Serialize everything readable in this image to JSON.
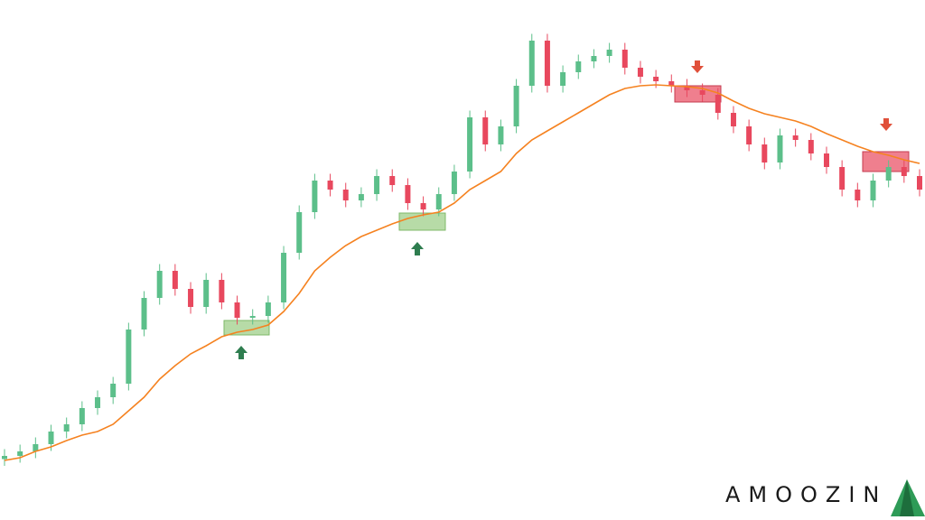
{
  "brand": "AMOOZIN",
  "chart_data": {
    "type": "candlestick",
    "categories": [
      null,
      null,
      null,
      null,
      null,
      null,
      null,
      null,
      null,
      null,
      null,
      null,
      null,
      null,
      null,
      null,
      null,
      null,
      null,
      null,
      null,
      null,
      null,
      null,
      null,
      null,
      null,
      null,
      null,
      null,
      null,
      null,
      null,
      null,
      null,
      null,
      null,
      null,
      null,
      null,
      null,
      null,
      null,
      null,
      null,
      null,
      null,
      null,
      null,
      null,
      null,
      null,
      null,
      null,
      null,
      null,
      null,
      null,
      null,
      null
    ],
    "open": [
      13.5,
      14.2,
      15.2,
      16.8,
      19.6,
      21.2,
      24.8,
      27.2,
      30.2,
      42.2,
      49.2,
      55.2,
      51.2,
      47.2,
      53.2,
      48.2,
      44.8,
      45.2,
      48.2,
      59.2,
      68.2,
      75.2,
      73.2,
      70.8,
      72.2,
      76.2,
      74.2,
      70.2,
      68.8,
      72.2,
      77.2,
      89.2,
      83.2,
      87.2,
      96.2,
      106.2,
      96.2,
      99.2,
      101.6,
      102.8,
      104.2,
      100.2,
      98.2,
      97.2,
      96.2,
      95.2,
      94.2,
      90.2,
      87.2,
      83.2,
      79.2,
      85.2,
      84.2,
      81.2,
      78.2,
      73.2,
      70.8,
      75.2,
      78.2,
      76.2
    ],
    "high": [
      15.7,
      16.7,
      18.3,
      21.1,
      22.7,
      26.3,
      28.7,
      31.7,
      43.7,
      50.7,
      56.7,
      56.7,
      52.7,
      54.7,
      54.7,
      49.7,
      46.7,
      49.7,
      60.7,
      69.7,
      76.7,
      76.7,
      74.7,
      73.7,
      77.7,
      77.7,
      75.7,
      71.7,
      73.7,
      78.7,
      90.7,
      90.7,
      88.7,
      97.7,
      107.7,
      107.7,
      100.7,
      103.1,
      104.3,
      105.7,
      105.7,
      101.7,
      99.7,
      98.7,
      97.7,
      96.7,
      95.7,
      91.7,
      88.7,
      84.7,
      86.7,
      86.7,
      85.7,
      82.7,
      79.7,
      74.7,
      76.7,
      79.7,
      79.7,
      77.7
    ],
    "low": [
      12,
      12.7,
      13.7,
      15.3,
      18.1,
      19.7,
      23.3,
      25.7,
      28.7,
      40.7,
      47.7,
      49.7,
      45.7,
      45.7,
      46.7,
      43.3,
      43.3,
      43.7,
      46.7,
      57.7,
      66.7,
      71.7,
      69.3,
      69.3,
      70.7,
      72.7,
      68.7,
      67.3,
      67.3,
      70.7,
      75.7,
      81.7,
      81.7,
      85.7,
      94.7,
      94.7,
      94.7,
      97.7,
      100.1,
      101.3,
      98.7,
      96.7,
      95.7,
      94.7,
      93.7,
      92.7,
      88.7,
      85.7,
      81.7,
      77.7,
      77.7,
      82.7,
      79.7,
      76.7,
      71.7,
      69.3,
      69.3,
      73.7,
      74.7,
      71.7
    ],
    "close": [
      14.2,
      15.2,
      16.8,
      19.6,
      21.2,
      24.8,
      27.2,
      30.2,
      42.2,
      49.2,
      55.2,
      51.2,
      47.2,
      53.2,
      48.2,
      44.8,
      45.2,
      48.2,
      59.2,
      68.2,
      75.2,
      73.2,
      70.8,
      72.2,
      76.2,
      74.2,
      70.2,
      68.8,
      72.2,
      77.2,
      89.2,
      83.2,
      87.2,
      96.2,
      106.2,
      96.2,
      99.2,
      101.6,
      102.8,
      104.2,
      100.2,
      98.2,
      97.2,
      96.2,
      95.2,
      94.2,
      90.2,
      87.2,
      83.2,
      79.2,
      85.2,
      84.2,
      81.2,
      78.2,
      73.2,
      70.8,
      75.2,
      78.2,
      76.2,
      73.2
    ],
    "up_color": "#5cbf8a",
    "down_color": "#e8485e",
    "moving_average": {
      "color": "#f58220",
      "values": [
        13.2,
        13.8,
        15.2,
        16.2,
        17.6,
        18.8,
        19.6,
        21.2,
        24.2,
        27.2,
        31.2,
        34.2,
        36.8,
        38.6,
        40.6,
        41.6,
        42.2,
        43.2,
        46.2,
        50.2,
        55.2,
        58.2,
        60.8,
        62.8,
        64.2,
        65.6,
        66.8,
        67.6,
        68.2,
        70.2,
        73.2,
        75.2,
        77.2,
        81.2,
        84.2,
        86.2,
        88.2,
        90.2,
        92.2,
        94.2,
        95.6,
        96.2,
        96.4,
        96.2,
        96,
        95.6,
        94.6,
        92.8,
        91.2,
        90,
        89.2,
        88.4,
        87.2,
        85.6,
        84.2,
        82.8,
        81.6,
        80.8,
        79.8,
        79
      ]
    },
    "ylim": [
      0,
      115.2
    ],
    "grid": false
  }
}
